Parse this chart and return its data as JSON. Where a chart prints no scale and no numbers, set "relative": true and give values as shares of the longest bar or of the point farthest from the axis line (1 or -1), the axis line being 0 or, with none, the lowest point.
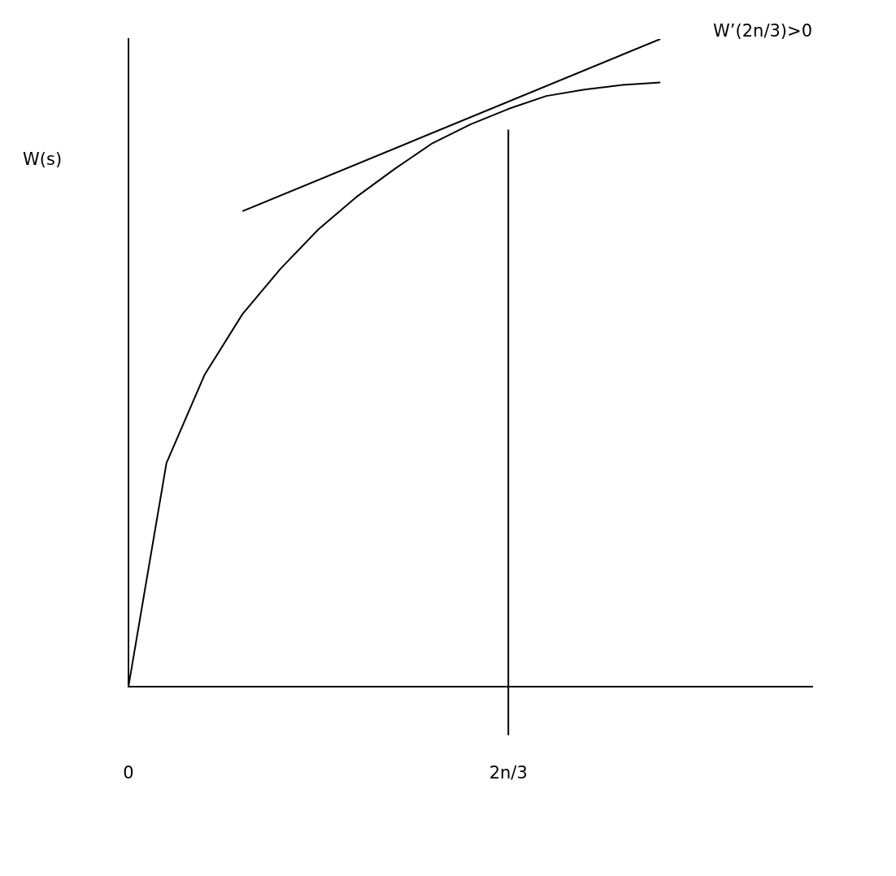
{
  "chart_data": {
    "type": "line",
    "ylabel": "W(s)",
    "relative": true,
    "categories": [
      "0",
      null,
      null,
      null,
      null,
      null,
      null,
      null,
      null,
      null,
      "2n/3",
      null,
      null,
      null,
      null,
      null,
      null,
      null,
      null
    ],
    "series": [
      {
        "color": "#000000",
        "values": [
          0,
          0.345,
          0.481,
          0.575,
          0.645,
          0.706,
          0.756,
          0.799,
          0.839,
          0.868,
          0.892,
          0.912,
          0.922,
          0.929,
          0.933,
          null,
          null,
          null,
          null
        ]
      },
      {
        "type": "line",
        "color": "#000000",
        "values": [
          null,
          null,
          null,
          0.734,
          null,
          null,
          null,
          null,
          null,
          null,
          null,
          null,
          null,
          null,
          1.0,
          null,
          null,
          null,
          null
        ]
      }
    ],
    "ref_lines": [
      {
        "axis": "x",
        "value": "2n/3",
        "color": "#000000"
      }
    ],
    "annotations": [
      "W’(2n/3)>0"
    ],
    "grid": false,
    "legend": false,
    "marker": "none",
    "line_style": "solid"
  }
}
